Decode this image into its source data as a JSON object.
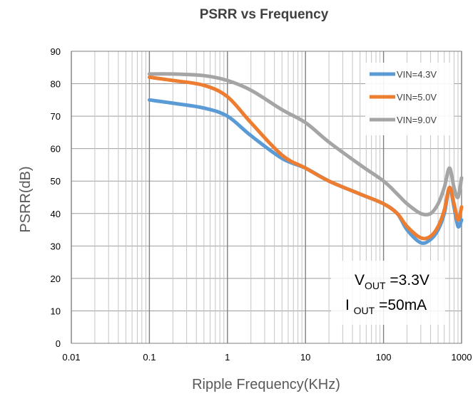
{
  "chart_data": {
    "type": "line",
    "title": "PSRR vs Frequency",
    "xlabel": "Ripple Frequency(KHz)",
    "ylabel": "PSRR(dB)",
    "xscale": "log",
    "xlim": [
      0.01,
      1000
    ],
    "ylim": [
      0,
      90
    ],
    "x_tick_labels": [
      "0.01",
      "0.1",
      "1",
      "10",
      "100",
      "1000"
    ],
    "y_tick_labels": [
      "0",
      "10",
      "20",
      "30",
      "40",
      "50",
      "60",
      "70",
      "80",
      "90"
    ],
    "grid": true,
    "legend_position": "top-right",
    "series": [
      {
        "name": "VIN=4.3V",
        "color": "#5B9BD5",
        "x": [
          0.1,
          0.2,
          0.5,
          1,
          2,
          5,
          10,
          20,
          50,
          100,
          150,
          200,
          300,
          400,
          500,
          600,
          700,
          800,
          900,
          1000
        ],
        "y": [
          75,
          74,
          72.5,
          70,
          64,
          57,
          54,
          50,
          46,
          43,
          40,
          35,
          31,
          32,
          35,
          40,
          48,
          42,
          36,
          38
        ]
      },
      {
        "name": "VIN=5.0V",
        "color": "#ED7D31",
        "x": [
          0.1,
          0.2,
          0.5,
          1,
          2,
          5,
          10,
          20,
          50,
          100,
          150,
          200,
          300,
          400,
          500,
          600,
          700,
          800,
          900,
          1000
        ],
        "y": [
          82,
          81,
          79.5,
          76,
          68,
          58,
          54,
          50,
          46,
          43,
          40,
          36,
          32.5,
          33,
          36,
          41,
          48,
          43,
          38,
          42
        ]
      },
      {
        "name": "VIN=9.0V",
        "color": "#A5A5A5",
        "x": [
          0.1,
          0.2,
          0.5,
          1,
          2,
          5,
          10,
          20,
          50,
          100,
          150,
          200,
          300,
          400,
          500,
          600,
          700,
          800,
          900,
          1000
        ],
        "y": [
          83,
          83,
          82.5,
          81,
          78,
          72,
          68,
          62,
          55,
          50,
          46,
          43,
          40,
          40,
          43,
          48,
          54,
          48,
          45,
          51
        ]
      }
    ],
    "annotation": {
      "line1_main": "V",
      "line1_sub": "OUT",
      "line1_rest": " =3.3V",
      "line2_main": "I ",
      "line2_sub": "OUT",
      "line2_rest": " =50mA"
    }
  }
}
